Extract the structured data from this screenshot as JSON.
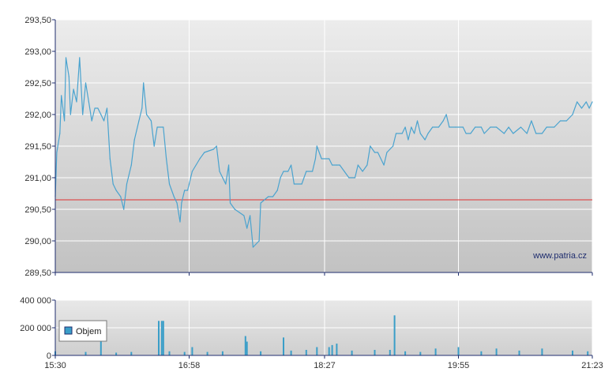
{
  "watermark": "www.patria.cz",
  "colors": {
    "price_line": "#4aa3cf",
    "reference_line": "#e03030",
    "volume_bar": "#3a9ec8",
    "axis": "#1f2d6e",
    "grid": "#ffffff"
  },
  "chart_data": [
    {
      "type": "line",
      "title": "",
      "xlabel": "",
      "ylabel": "",
      "x_range": [
        "15:30",
        "21:23"
      ],
      "ylim": [
        289.5,
        293.5
      ],
      "x_ticks": [
        "15:30",
        "16:58",
        "18:27",
        "19:55",
        "21:23"
      ],
      "y_ticks": [
        "289,50",
        "290,00",
        "290,50",
        "291,00",
        "291,50",
        "292,00",
        "292,50",
        "293,00",
        "293,50"
      ],
      "reference_line": {
        "value": 290.65
      },
      "series": [
        {
          "values": [
            [
              "15:30",
              290.7
            ],
            [
              "15:31",
              291.4
            ],
            [
              "15:33",
              291.7
            ],
            [
              "15:34",
              292.3
            ],
            [
              "15:36",
              291.9
            ],
            [
              "15:37",
              292.9
            ],
            [
              "15:39",
              292.6
            ],
            [
              "15:40",
              292.0
            ],
            [
              "15:42",
              292.4
            ],
            [
              "15:44",
              292.2
            ],
            [
              "15:46",
              292.9
            ],
            [
              "15:48",
              292.0
            ],
            [
              "15:50",
              292.5
            ],
            [
              "15:52",
              292.2
            ],
            [
              "15:54",
              291.9
            ],
            [
              "15:56",
              292.1
            ],
            [
              "15:58",
              292.1
            ],
            [
              "16:00",
              292.0
            ],
            [
              "16:02",
              291.9
            ],
            [
              "16:04",
              292.1
            ],
            [
              "16:06",
              291.3
            ],
            [
              "16:08",
              290.9
            ],
            [
              "16:10",
              290.8
            ],
            [
              "16:13",
              290.7
            ],
            [
              "16:15",
              290.5
            ],
            [
              "16:17",
              290.9
            ],
            [
              "16:20",
              291.2
            ],
            [
              "16:22",
              291.6
            ],
            [
              "16:25",
              291.9
            ],
            [
              "16:27",
              292.1
            ],
            [
              "16:28",
              292.5
            ],
            [
              "16:30",
              292.0
            ],
            [
              "16:33",
              291.9
            ],
            [
              "16:35",
              291.5
            ],
            [
              "16:37",
              291.8
            ],
            [
              "16:41",
              291.8
            ],
            [
              "16:43",
              291.3
            ],
            [
              "16:45",
              290.9
            ],
            [
              "16:48",
              290.7
            ],
            [
              "16:50",
              290.6
            ],
            [
              "16:52",
              290.3
            ],
            [
              "16:53",
              290.6
            ],
            [
              "16:55",
              290.8
            ],
            [
              "16:57",
              290.8
            ],
            [
              "17:00",
              291.1
            ],
            [
              "17:05",
              291.3
            ],
            [
              "17:08",
              291.4
            ],
            [
              "17:14",
              291.45
            ],
            [
              "17:16",
              291.5
            ],
            [
              "17:18",
              291.1
            ],
            [
              "17:20",
              291.0
            ],
            [
              "17:22",
              290.9
            ],
            [
              "17:24",
              291.2
            ],
            [
              "17:25",
              290.6
            ],
            [
              "17:28",
              290.5
            ],
            [
              "17:31",
              290.45
            ],
            [
              "17:34",
              290.4
            ],
            [
              "17:36",
              290.2
            ],
            [
              "17:38",
              290.4
            ],
            [
              "17:40",
              289.9
            ],
            [
              "17:44",
              290.0
            ],
            [
              "17:45",
              290.6
            ],
            [
              "17:50",
              290.7
            ],
            [
              "17:53",
              290.7
            ],
            [
              "17:56",
              290.8
            ],
            [
              "17:58",
              291.0
            ],
            [
              "18:00",
              291.1
            ],
            [
              "18:03",
              291.1
            ],
            [
              "18:05",
              291.2
            ],
            [
              "18:07",
              290.9
            ],
            [
              "18:12",
              290.9
            ],
            [
              "18:15",
              291.1
            ],
            [
              "18:19",
              291.1
            ],
            [
              "18:21",
              291.3
            ],
            [
              "18:22",
              291.5
            ],
            [
              "18:25",
              291.3
            ],
            [
              "18:30",
              291.3
            ],
            [
              "18:32",
              291.2
            ],
            [
              "18:35",
              291.2
            ],
            [
              "18:37",
              291.2
            ],
            [
              "18:40",
              291.1
            ],
            [
              "18:43",
              291.0
            ],
            [
              "18:47",
              291.0
            ],
            [
              "18:49",
              291.2
            ],
            [
              "18:52",
              291.1
            ],
            [
              "18:55",
              291.2
            ],
            [
              "18:57",
              291.5
            ],
            [
              "19:00",
              291.4
            ],
            [
              "19:02",
              291.4
            ],
            [
              "19:06",
              291.2
            ],
            [
              "19:08",
              291.4
            ],
            [
              "19:12",
              291.5
            ],
            [
              "19:14",
              291.7
            ],
            [
              "19:18",
              291.7
            ],
            [
              "19:20",
              291.8
            ],
            [
              "19:22",
              291.6
            ],
            [
              "19:24",
              291.8
            ],
            [
              "19:26",
              291.7
            ],
            [
              "19:28",
              291.9
            ],
            [
              "19:30",
              291.7
            ],
            [
              "19:33",
              291.6
            ],
            [
              "19:35",
              291.7
            ],
            [
              "19:38",
              291.8
            ],
            [
              "19:42",
              291.8
            ],
            [
              "19:45",
              291.9
            ],
            [
              "19:47",
              292.0
            ],
            [
              "19:49",
              291.8
            ],
            [
              "19:53",
              291.8
            ],
            [
              "19:58",
              291.8
            ],
            [
              "20:00",
              291.7
            ],
            [
              "20:03",
              291.7
            ],
            [
              "20:06",
              291.8
            ],
            [
              "20:10",
              291.8
            ],
            [
              "20:12",
              291.7
            ],
            [
              "20:16",
              291.8
            ],
            [
              "20:20",
              291.8
            ],
            [
              "20:25",
              291.7
            ],
            [
              "20:28",
              291.8
            ],
            [
              "20:31",
              291.7
            ],
            [
              "20:36",
              291.8
            ],
            [
              "20:40",
              291.7
            ],
            [
              "20:43",
              291.9
            ],
            [
              "20:46",
              291.7
            ],
            [
              "20:50",
              291.7
            ],
            [
              "20:53",
              291.8
            ],
            [
              "20:58",
              291.8
            ],
            [
              "21:02",
              291.9
            ],
            [
              "21:06",
              291.9
            ],
            [
              "21:10",
              292.0
            ],
            [
              "21:13",
              292.2
            ],
            [
              "21:16",
              292.1
            ],
            [
              "21:19",
              292.2
            ],
            [
              "21:21",
              292.1
            ],
            [
              "21:23",
              292.2
            ]
          ]
        }
      ]
    },
    {
      "type": "bar",
      "title": "",
      "xlabel": "",
      "ylabel": "",
      "x_range": [
        "15:30",
        "21:23"
      ],
      "ylim": [
        0,
        400000
      ],
      "y_ticks": [
        "0",
        "200 000",
        "400 000"
      ],
      "x_ticks": [
        "15:30",
        "16:58",
        "18:27",
        "19:55",
        "21:23"
      ],
      "series": [
        {
          "name": "Objem",
          "values": [
            [
              "15:30",
              30000
            ],
            [
              "15:50",
              25000
            ],
            [
              "16:00",
              100000
            ],
            [
              "16:10",
              20000
            ],
            [
              "16:20",
              25000
            ],
            [
              "16:38",
              250000
            ],
            [
              "16:40",
              250000
            ],
            [
              "16:41",
              250000
            ],
            [
              "16:45",
              30000
            ],
            [
              "16:55",
              25000
            ],
            [
              "17:00",
              60000
            ],
            [
              "17:10",
              25000
            ],
            [
              "17:20",
              30000
            ],
            [
              "17:35",
              140000
            ],
            [
              "17:36",
              100000
            ],
            [
              "17:45",
              30000
            ],
            [
              "18:00",
              130000
            ],
            [
              "18:05",
              35000
            ],
            [
              "18:15",
              40000
            ],
            [
              "18:22",
              60000
            ],
            [
              "18:30",
              60000
            ],
            [
              "18:32",
              75000
            ],
            [
              "18:35",
              85000
            ],
            [
              "18:45",
              35000
            ],
            [
              "19:00",
              40000
            ],
            [
              "19:10",
              40000
            ],
            [
              "19:13",
              290000
            ],
            [
              "19:20",
              30000
            ],
            [
              "19:30",
              25000
            ],
            [
              "19:40",
              50000
            ],
            [
              "19:55",
              60000
            ],
            [
              "20:10",
              30000
            ],
            [
              "20:20",
              50000
            ],
            [
              "20:35",
              35000
            ],
            [
              "20:50",
              50000
            ],
            [
              "21:10",
              35000
            ],
            [
              "21:20",
              30000
            ]
          ]
        }
      ]
    }
  ]
}
